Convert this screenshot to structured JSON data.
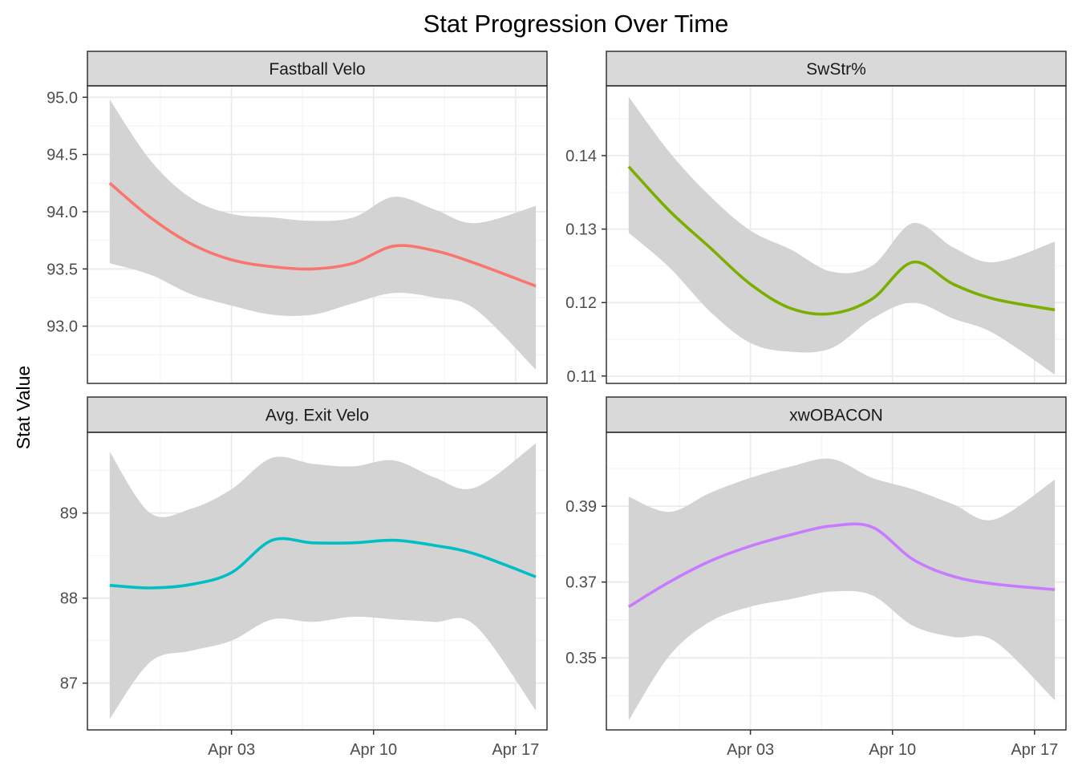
{
  "title": "Stat Progression Over Time",
  "ylabel": "Stat Value",
  "chart_data": {
    "type": "line",
    "title": "Stat Progression Over Time",
    "xlabel": "",
    "ylabel": "Stat Value",
    "grid": true,
    "legend": "none",
    "x_ticks": [
      "Apr 03",
      "Apr 10",
      "Apr 17"
    ],
    "panels": [
      {
        "name": "Fastball Velo",
        "color": "#F8766D",
        "ylim": [
          92.5,
          95.1
        ],
        "y_ticks": [
          {
            "value": 95.0,
            "label": "95.0"
          },
          {
            "value": 94.5,
            "label": "94.5"
          },
          {
            "value": 94.0,
            "label": "94.0"
          },
          {
            "value": 93.5,
            "label": "93.5"
          },
          {
            "value": 93.0,
            "label": "93.0"
          }
        ],
        "x": [
          "Mar 28",
          "Mar 30",
          "Apr 01",
          "Apr 03",
          "Apr 05",
          "Apr 07",
          "Apr 09",
          "Apr 11",
          "Apr 13",
          "Apr 15",
          "Apr 18"
        ],
        "values": [
          94.25,
          93.95,
          93.72,
          93.58,
          93.52,
          93.5,
          93.55,
          93.7,
          93.66,
          93.55,
          93.35
        ],
        "lower": [
          93.55,
          93.45,
          93.28,
          93.18,
          93.1,
          93.1,
          93.2,
          93.29,
          93.25,
          93.15,
          92.62
        ],
        "upper": [
          94.98,
          94.45,
          94.12,
          93.98,
          93.95,
          93.92,
          93.95,
          94.13,
          94.02,
          93.9,
          94.05
        ]
      },
      {
        "name": "SwStr%",
        "color": "#7CAE00",
        "ylim": [
          0.109,
          0.1495
        ],
        "y_ticks": [
          {
            "value": 0.14,
            "label": "0.14"
          },
          {
            "value": 0.13,
            "label": "0.13"
          },
          {
            "value": 0.12,
            "label": "0.12"
          },
          {
            "value": 0.11,
            "label": "0.11"
          }
        ],
        "x": [
          "Mar 28",
          "Mar 30",
          "Apr 01",
          "Apr 03",
          "Apr 05",
          "Apr 07",
          "Apr 09",
          "Apr 11",
          "Apr 13",
          "Apr 15",
          "Apr 18"
        ],
        "values": [
          0.1385,
          0.1325,
          0.1275,
          0.1225,
          0.1192,
          0.1185,
          0.1205,
          0.1255,
          0.1225,
          0.1205,
          0.119
        ],
        "lower": [
          0.1295,
          0.1248,
          0.1188,
          0.1145,
          0.1133,
          0.1138,
          0.1178,
          0.12,
          0.1178,
          0.1158,
          0.1102
        ],
        "upper": [
          0.148,
          0.1405,
          0.1345,
          0.1298,
          0.1272,
          0.1242,
          0.125,
          0.1308,
          0.1275,
          0.1255,
          0.1283
        ]
      },
      {
        "name": "Avg. Exit Velo",
        "color": "#00BFC4",
        "ylim": [
          86.45,
          89.95
        ],
        "y_ticks": [
          {
            "value": 89,
            "label": "89"
          },
          {
            "value": 88,
            "label": "88"
          },
          {
            "value": 87,
            "label": "87"
          }
        ],
        "x": [
          "Mar 28",
          "Mar 30",
          "Apr 01",
          "Apr 03",
          "Apr 05",
          "Apr 07",
          "Apr 09",
          "Apr 11",
          "Apr 13",
          "Apr 15",
          "Apr 18"
        ],
        "values": [
          88.15,
          88.12,
          88.16,
          88.3,
          88.68,
          88.65,
          88.65,
          88.68,
          88.62,
          88.52,
          88.25
        ],
        "lower": [
          86.58,
          87.25,
          87.38,
          87.5,
          87.75,
          87.72,
          87.78,
          87.75,
          87.72,
          87.68,
          86.68
        ],
        "upper": [
          89.72,
          89.0,
          89.05,
          89.28,
          89.65,
          89.58,
          89.55,
          89.62,
          89.42,
          89.3,
          89.82
        ]
      },
      {
        "name": "xwOBACON",
        "color": "#C77CFF",
        "ylim": [
          0.331,
          0.4095
        ],
        "y_ticks": [
          {
            "value": 0.39,
            "label": "0.39"
          },
          {
            "value": 0.37,
            "label": "0.37"
          },
          {
            "value": 0.35,
            "label": "0.35"
          }
        ],
        "x": [
          "Mar 28",
          "Mar 30",
          "Apr 01",
          "Apr 03",
          "Apr 05",
          "Apr 07",
          "Apr 09",
          "Apr 11",
          "Apr 13",
          "Apr 15",
          "Apr 18"
        ],
        "values": [
          0.3635,
          0.37,
          0.3755,
          0.3795,
          0.3825,
          0.3848,
          0.3845,
          0.376,
          0.3715,
          0.3695,
          0.368
        ],
        "lower": [
          0.3335,
          0.3505,
          0.3595,
          0.3635,
          0.3655,
          0.3675,
          0.3665,
          0.3585,
          0.3555,
          0.3545,
          0.3388
        ],
        "upper": [
          0.3925,
          0.3885,
          0.3935,
          0.3975,
          0.4005,
          0.4025,
          0.3975,
          0.3945,
          0.3905,
          0.3865,
          0.397
        ]
      }
    ]
  }
}
